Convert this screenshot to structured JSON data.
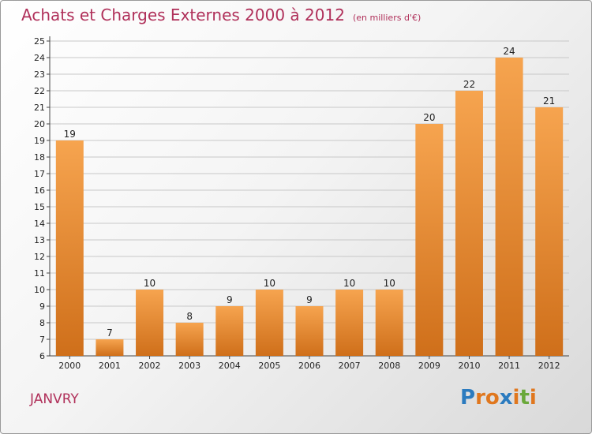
{
  "title": "Achats et Charges Externes 2000 à 2012",
  "subtitle": "(en milliers d'€)",
  "commune": "JANVRY",
  "logo": {
    "text": "Proxiti",
    "letter_colors": [
      "#2b7bbf",
      "#e0771e",
      "#e0771e",
      "#2b7bbf",
      "#e0771e",
      "#6aa83a",
      "#e0771e"
    ]
  },
  "colors": {
    "bar_top": "#f6a44f",
    "bar_bottom": "#cf6f1a",
    "title": "#b0305a",
    "gridline": "#c8c8c8"
  },
  "chart_data": {
    "type": "bar",
    "categories": [
      "2000",
      "2001",
      "2002",
      "2003",
      "2004",
      "2005",
      "2006",
      "2007",
      "2008",
      "2009",
      "2010",
      "2011",
      "2012"
    ],
    "values": [
      19,
      7,
      10,
      8,
      9,
      10,
      9,
      10,
      10,
      20,
      22,
      24,
      21
    ],
    "ylim": [
      6,
      25
    ],
    "yticks": [
      6,
      7,
      8,
      9,
      10,
      11,
      12,
      13,
      14,
      15,
      16,
      17,
      18,
      19,
      20,
      21,
      22,
      23,
      24,
      25
    ],
    "grid": true,
    "title": "Achats et Charges Externes 2000 à 2012",
    "xlabel": "",
    "ylabel": ""
  }
}
